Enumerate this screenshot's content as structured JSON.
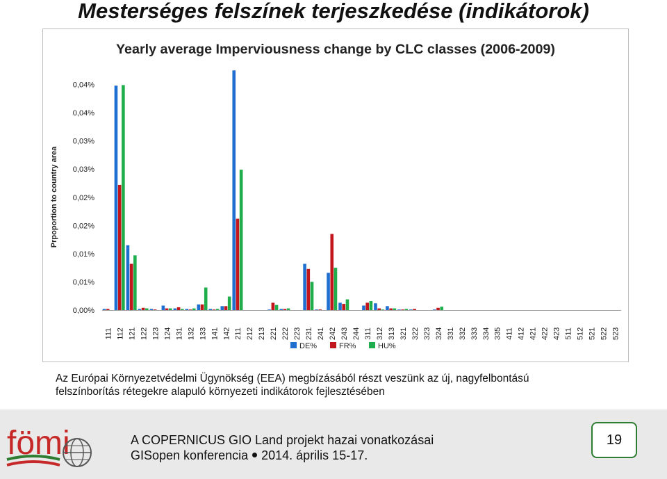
{
  "slide_title": "Mesterséges felszínek terjeszkedése (indikátorok)",
  "caption": {
    "line1": "Az Európai Környezetvédelmi Ügynökség (EEA) megbízásából részt veszünk az új, nagyfelbontású",
    "line2": "felszínborítás rétegekre alapuló környezeti indikátorok fejlesztésében"
  },
  "footer": {
    "logo_text": "fömi",
    "line1": "A COPERNICUS GIO Land projekt hazai vonatkozásai",
    "line2_part1": "GISopen konferencia",
    "line2_part2": "2014. április 15-17.",
    "page_number": "19",
    "accent_green": "#2e7d32",
    "accent_red": "#c62828"
  },
  "chart_data": {
    "type": "bar",
    "title": "Yearly average Imperviousness change by CLC classes (2006-2009)",
    "ylabel": "Prpoportion to country area",
    "xlabel": "",
    "ylim": [
      0,
      0.045
    ],
    "yticks": [
      0,
      0.005,
      0.01,
      0.015,
      0.02,
      0.025,
      0.03,
      0.035,
      0.04
    ],
    "ytick_labels": [
      "0,00%",
      "0,01%",
      "0,01%",
      "0,02%",
      "0,02%",
      "0,03%",
      "0,03%",
      "0,04%",
      "0,04%"
    ],
    "grid": false,
    "legend_position": "bottom",
    "categories": [
      "111",
      "112",
      "121",
      "122",
      "123",
      "124",
      "131",
      "132",
      "133",
      "141",
      "142",
      "211",
      "212",
      "213",
      "221",
      "222",
      "223",
      "231",
      "241",
      "242",
      "243",
      "244",
      "311",
      "312",
      "313",
      "321",
      "322",
      "323",
      "324",
      "331",
      "332",
      "333",
      "334",
      "335",
      "411",
      "412",
      "421",
      "422",
      "423",
      "511",
      "512",
      "521",
      "522",
      "523"
    ],
    "series": [
      {
        "name": "DE%",
        "color": "#1f6fd0",
        "values": [
          0.0002,
          0.0398,
          0.0115,
          0.0002,
          0.0002,
          0.0008,
          0.0003,
          0.0002,
          0.001,
          0.0002,
          0.0007,
          0.0425,
          0,
          0,
          0.0001,
          0.0002,
          0,
          0.0082,
          0.0001,
          0.0066,
          0.0013,
          0,
          0.0008,
          0.0012,
          0.0007,
          0.0001,
          0.0001,
          0,
          0.0001,
          0,
          0,
          0,
          0,
          0,
          0,
          0,
          0,
          0,
          0,
          0,
          0,
          0,
          0,
          0
        ]
      },
      {
        "name": "FR%",
        "color": "#c0161c",
        "values": [
          0.0002,
          0.0222,
          0.0082,
          0.0004,
          0.0001,
          0.0003,
          0.0005,
          0.0001,
          0.001,
          0.0001,
          0.0007,
          0.0162,
          0,
          0,
          0.0013,
          0.0002,
          0,
          0.0073,
          0.0001,
          0.0135,
          0.0011,
          0,
          0.0013,
          0.0003,
          0.0003,
          0.0001,
          0.0002,
          0,
          0.0004,
          0,
          0,
          0,
          0,
          0,
          0,
          0,
          0,
          0,
          0,
          0,
          0,
          0,
          0,
          0
        ]
      },
      {
        "name": "HU%",
        "color": "#1fae4b",
        "values": [
          0,
          0.0399,
          0.0097,
          0.0003,
          0,
          0.0003,
          0.0002,
          0.0003,
          0.004,
          0.0002,
          0.0024,
          0.0249,
          0,
          0,
          0.0009,
          0.0003,
          0,
          0.005,
          0,
          0.0075,
          0.0019,
          0,
          0.0016,
          0.0001,
          0.0003,
          0.0002,
          0,
          0,
          0.0006,
          0,
          0,
          0,
          0,
          0,
          0,
          0,
          0,
          0,
          0,
          0,
          0,
          0,
          0,
          0
        ]
      }
    ]
  }
}
